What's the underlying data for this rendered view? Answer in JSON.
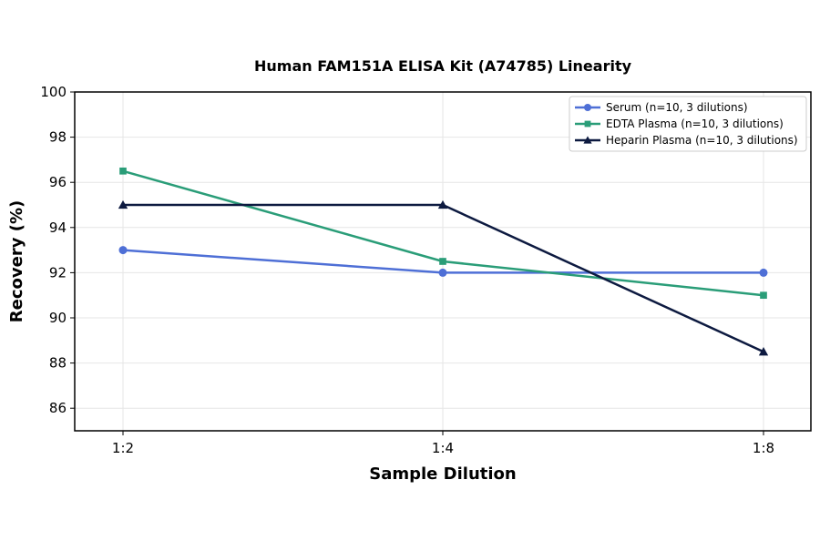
{
  "chart_data": {
    "type": "line",
    "title": "Human FAM151A ELISA Kit (A74785) Linearity",
    "xlabel": "Sample Dilution",
    "ylabel": "Recovery (%)",
    "categories": [
      "1:2",
      "1:4",
      "1:8"
    ],
    "ylim": [
      85,
      100
    ],
    "yticks": [
      86,
      88,
      90,
      92,
      94,
      96,
      98,
      100
    ],
    "grid": true,
    "legend_position": "top-right",
    "series": [
      {
        "name": "Serum (n=10, 3 dilutions)",
        "values": [
          93,
          92,
          92
        ],
        "color": "#4e6fd6",
        "marker": "circle"
      },
      {
        "name": "EDTA Plasma (n=10, 3 dilutions)",
        "values": [
          96.5,
          92.5,
          91
        ],
        "color": "#2a9d78",
        "marker": "square"
      },
      {
        "name": "Heparin Plasma (n=10, 3 dilutions)",
        "values": [
          95,
          95,
          88.5
        ],
        "color": "#0d1a40",
        "marker": "triangle"
      }
    ]
  }
}
